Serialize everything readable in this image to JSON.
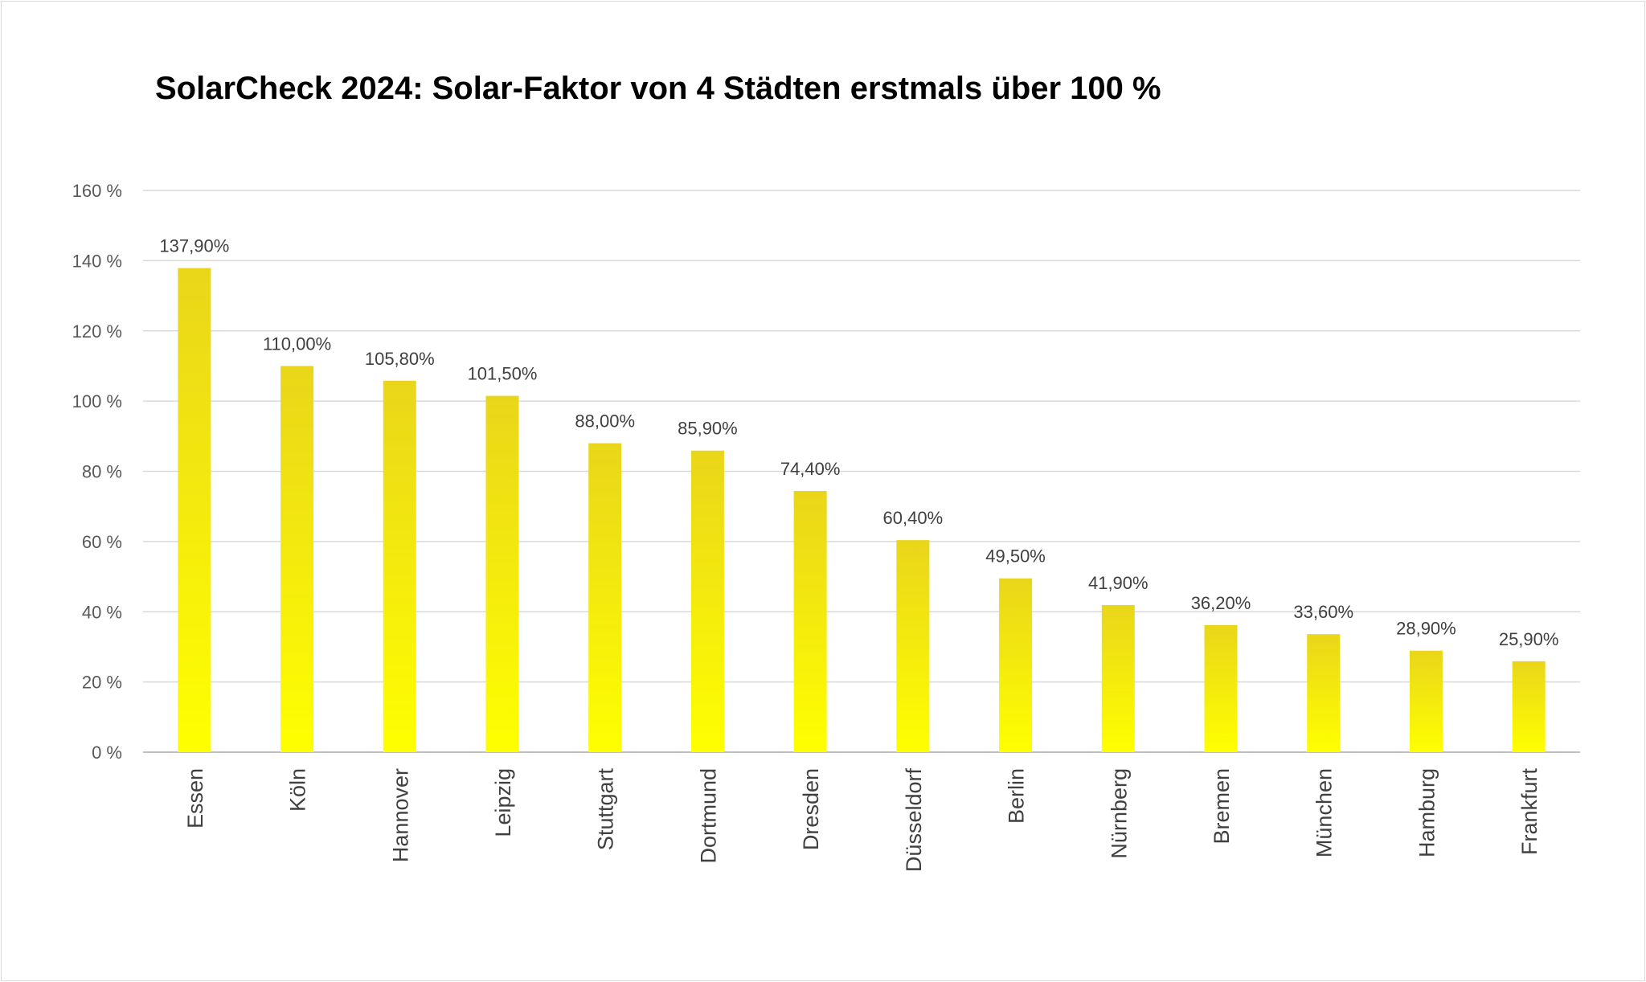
{
  "chart_data": {
    "type": "bar",
    "title": "SolarCheck 2024: Solar-Faktor von 4 Städten erstmals über 100 %",
    "xlabel": "",
    "ylabel": "",
    "categories": [
      "Essen",
      "Köln",
      "Hannover",
      "Leipzig",
      "Stuttgart",
      "Dortmund",
      "Dresden",
      "Düsseldorf",
      "Berlin",
      "Nürnberg",
      "Bremen",
      "München",
      "Hamburg",
      "Frankfurt"
    ],
    "values": [
      137.9,
      110.0,
      105.8,
      101.5,
      88.0,
      85.9,
      74.4,
      60.4,
      49.5,
      41.9,
      36.2,
      33.6,
      28.9,
      25.9
    ],
    "data_labels": [
      "137,90%",
      "110,00%",
      "105,80%",
      "101,50%",
      "88,00%",
      "85,90%",
      "74,40%",
      "60,40%",
      "49,50%",
      "41,90%",
      "36,20%",
      "33,60%",
      "28,90%",
      "25,90%"
    ],
    "ylim": [
      0,
      160
    ],
    "yticks": [
      0,
      20,
      40,
      60,
      80,
      100,
      120,
      140,
      160
    ],
    "ytick_labels": [
      "0 %",
      "20 %",
      "40 %",
      "60 %",
      "80 %",
      "100 %",
      "120 %",
      "140 %",
      "160 %"
    ],
    "grid": true,
    "legend": "none",
    "colors": {
      "bar_top": "#e9d61a",
      "bar_bottom": "#ffff00",
      "grid": "#d9d9d9",
      "axis": "#bfbfbf"
    }
  }
}
